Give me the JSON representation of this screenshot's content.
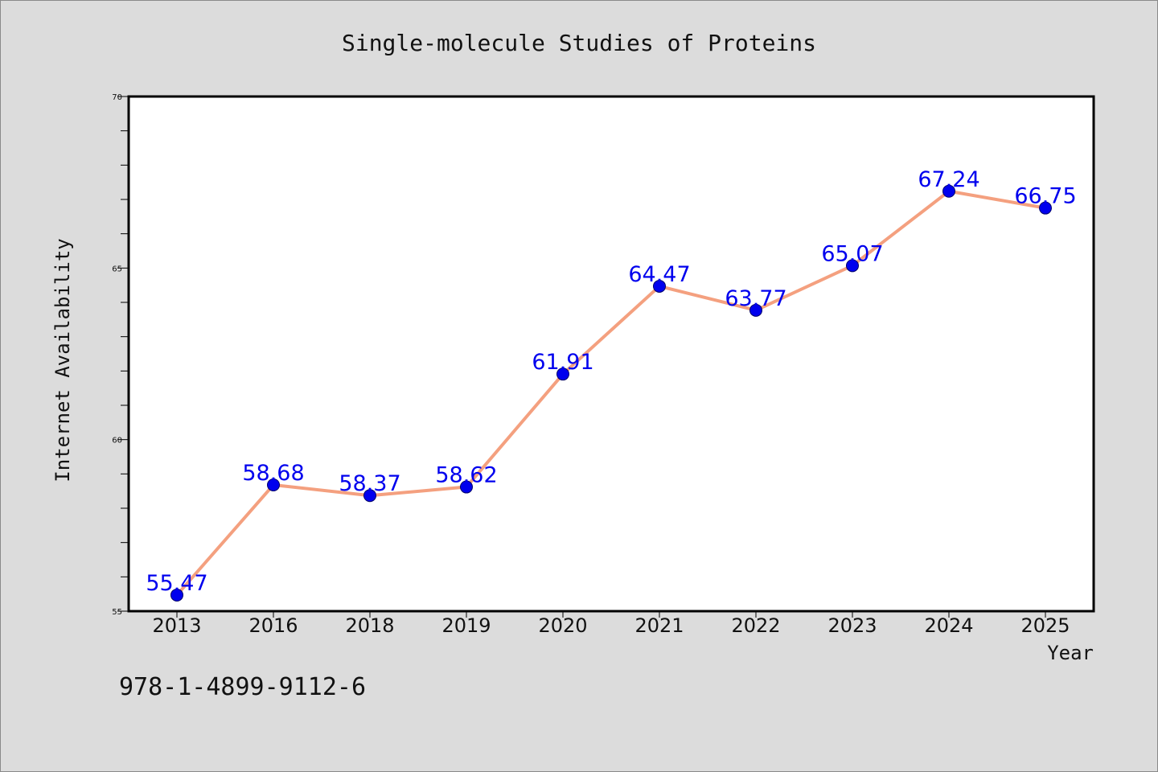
{
  "isbn_text": "978-1-4899-9112-6",
  "colors": {
    "background": "#dcdcdc",
    "plot_background": "#ffffff",
    "line": "#f4a07f",
    "marker": "#0000ee",
    "label": "#0000ee"
  },
  "chart_data": {
    "type": "line",
    "title": "Single-molecule Studies of Proteins",
    "xlabel": "Year",
    "ylabel": "Internet Availability",
    "categories": [
      "2013",
      "2016",
      "2018",
      "2019",
      "2020",
      "2021",
      "2022",
      "2023",
      "2024",
      "2025"
    ],
    "series": [
      {
        "values": [
          55.47,
          58.68,
          58.37,
          58.62,
          61.91,
          64.47,
          63.77,
          65.07,
          67.24,
          66.75
        ],
        "labels": [
          "55.47",
          "58.68",
          "58.37",
          "58.62",
          "61.91",
          "64.47",
          "63.77",
          "65.07",
          "67.24",
          "66.75"
        ]
      }
    ],
    "ylim": [
      55,
      70
    ],
    "yticks": [
      "55",
      "60",
      "65",
      "70"
    ],
    "grid": false,
    "legend": "none"
  }
}
